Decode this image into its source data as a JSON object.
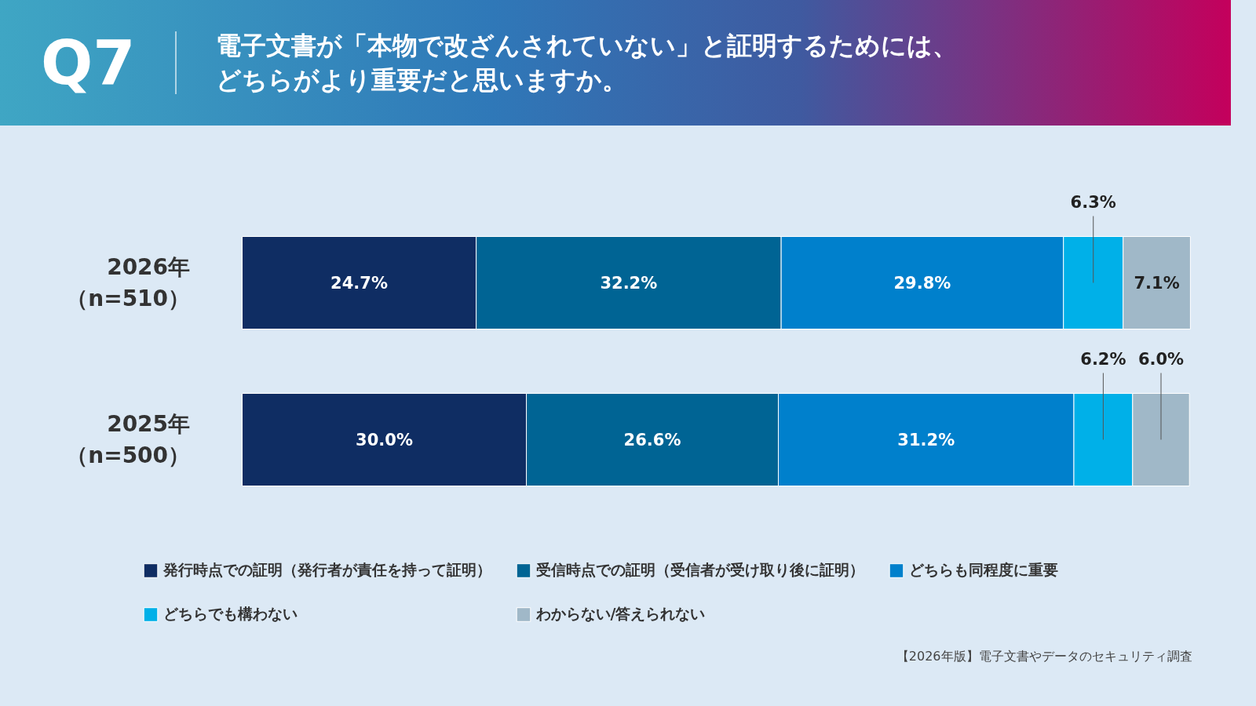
{
  "chart_data": {
    "type": "bar",
    "orientation": "horizontal",
    "stacked": true,
    "legend": "bottom",
    "grid": false,
    "title": "Q7",
    "subtitle": "電子文書が「本物で改ざんされていない」と証明するためには、どちらがより重要だと思いますか。",
    "categories": [
      "2026年（n=510）",
      "2025年（n=500）"
    ],
    "series": [
      {
        "name": "発行時点での証明（発行者が責任を持って証明）",
        "color": "#0f2d63",
        "values": [
          24.7,
          30.0
        ],
        "value_labels": [
          "24.7%",
          "30.0%"
        ]
      },
      {
        "name": "受信時点での証明（受信者が受け取り後に証明）",
        "color": "#006494",
        "values": [
          32.2,
          26.6
        ],
        "value_labels": [
          "32.2%",
          "26.6%"
        ]
      },
      {
        "name": "どちらも同程度に重要",
        "color": "#0080cc",
        "values": [
          29.8,
          31.2
        ],
        "value_labels": [
          "29.8%",
          "31.2%"
        ]
      },
      {
        "name": "どちらでも構わない",
        "color": "#00b0e8",
        "values": [
          6.3,
          6.2
        ],
        "value_labels": [
          "6.3%",
          "6.2%"
        ]
      },
      {
        "name": "わからない/答えられない",
        "color": "#a0b8c8",
        "values": [
          7.1,
          6.0
        ],
        "value_labels": [
          "7.1%",
          "6.0%"
        ]
      }
    ],
    "annotations": [
      "【2026年版】電子文書やデータのセキュリティ調査"
    ]
  }
}
